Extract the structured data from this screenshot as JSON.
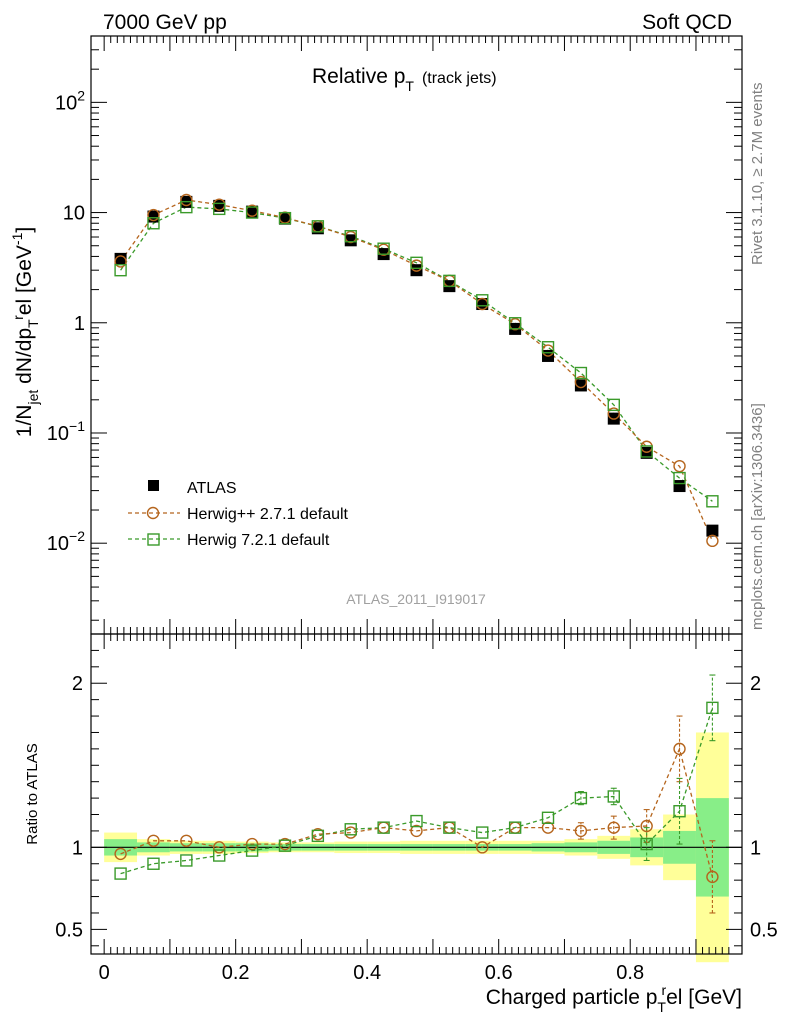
{
  "header": {
    "left": "7000 GeV pp",
    "right": "Soft QCD"
  },
  "side_labels": {
    "rivet": "Rivet 3.1.10, ≥ 2.7M events",
    "mcplots": "mcplots.cern.ch [arXiv:1306.3436]"
  },
  "analysis_tag": "ATLAS_2011_I919017",
  "colors": {
    "atlas": "#000000",
    "herwigpp": "#b5651d",
    "herwig7": "#3a9a2a",
    "band_inner": "#88ee88",
    "band_outer": "#ffff99"
  },
  "chart_data": [
    {
      "type": "scatter",
      "title": "Relative p_T (track jets)",
      "title_parts": {
        "main": "Relative p",
        "sub": "T",
        "extra": "(track jets)"
      },
      "ylabel": "1/N_jet dN/dp_T^rel [GeV^-1]",
      "ylabel_parts": {
        "a": "1/N",
        "a_sub": "jet",
        "b": " dN/dp",
        "b_sub": "T",
        "b_sup": "r",
        "c": "el [GeV",
        "c_sup": "-1",
        "d": "]"
      },
      "yscale": "log",
      "ylim": [
        0.0015,
        400
      ],
      "xlim": [
        -0.02,
        0.97
      ],
      "ytick_labels": [
        "10^-2",
        "10^-1",
        "1",
        "10",
        "10^2"
      ],
      "legend": {
        "position": "bottom-left",
        "entries": [
          "ATLAS",
          "Herwig++ 2.7.1 default",
          "Herwig 7.2.1 default"
        ]
      },
      "x": [
        0.025,
        0.075,
        0.125,
        0.175,
        0.225,
        0.275,
        0.325,
        0.375,
        0.425,
        0.475,
        0.525,
        0.575,
        0.625,
        0.675,
        0.725,
        0.775,
        0.825,
        0.875,
        0.925
      ],
      "series": [
        {
          "name": "ATLAS",
          "values": [
            3.8,
            9.2,
            12.5,
            11.5,
            10.2,
            8.8,
            7.2,
            5.6,
            4.2,
            3.0,
            2.15,
            1.48,
            0.88,
            0.5,
            0.27,
            0.135,
            0.066,
            0.033,
            0.013
          ]
        },
        {
          "name": "Herwig++ 2.7.1 default",
          "values": [
            3.6,
            9.5,
            13.0,
            11.8,
            10.4,
            9.0,
            7.5,
            6.0,
            4.6,
            3.3,
            2.4,
            1.48,
            0.97,
            0.56,
            0.29,
            0.15,
            0.075,
            0.05,
            0.0105
          ]
        },
        {
          "name": "Herwig 7.2.1 default",
          "values": [
            3.0,
            8.0,
            11.2,
            10.8,
            10.0,
            8.9,
            7.5,
            6.1,
            4.7,
            3.5,
            2.4,
            1.6,
            0.99,
            0.6,
            0.35,
            0.18,
            0.068,
            0.039,
            0.024
          ]
        }
      ]
    },
    {
      "type": "scatter",
      "ylabel": "Ratio to ATLAS",
      "xlabel": "Charged particle p_T^rel [GeV]",
      "xlabel_parts": {
        "a": "Charged particle p",
        "sub": "T",
        "sup": "r",
        "b": "el [GeV]"
      },
      "ylim": [
        0.35,
        2.3
      ],
      "yticks": [
        0.5,
        1,
        2
      ],
      "ytick_labels": [
        "0.5",
        "1",
        "2"
      ],
      "xticks": [
        0,
        0.2,
        0.4,
        0.6,
        0.8
      ],
      "xtick_labels": [
        "0",
        "0.2",
        "0.4",
        "0.6",
        "0.8"
      ],
      "x": [
        0.025,
        0.075,
        0.125,
        0.175,
        0.225,
        0.275,
        0.325,
        0.375,
        0.425,
        0.475,
        0.525,
        0.575,
        0.625,
        0.675,
        0.725,
        0.775,
        0.825,
        0.875,
        0.925
      ],
      "band_inner": [
        0.05,
        0.03,
        0.025,
        0.025,
        0.025,
        0.02,
        0.02,
        0.02,
        0.02,
        0.02,
        0.02,
        0.02,
        0.02,
        0.025,
        0.03,
        0.04,
        0.06,
        0.1,
        0.3
      ],
      "band_outer": [
        0.09,
        0.05,
        0.04,
        0.04,
        0.035,
        0.03,
        0.03,
        0.035,
        0.035,
        0.04,
        0.04,
        0.04,
        0.04,
        0.04,
        0.05,
        0.07,
        0.11,
        0.2,
        0.7
      ],
      "series": [
        {
          "name": "Herwig++ 2.7.1 default",
          "values": [
            0.96,
            1.04,
            1.04,
            1.0,
            1.02,
            1.02,
            1.08,
            1.09,
            1.12,
            1.1,
            1.12,
            1.0,
            1.12,
            1.12,
            1.1,
            1.12,
            1.13,
            1.6,
            0.82
          ],
          "errors": [
            0,
            0,
            0,
            0,
            0,
            0,
            0,
            0,
            0,
            0,
            0,
            0,
            0,
            0,
            0.05,
            0.07,
            0.1,
            0.2,
            0.22
          ]
        },
        {
          "name": "Herwig 7.2.1 default",
          "values": [
            0.84,
            0.9,
            0.92,
            0.95,
            0.98,
            1.01,
            1.07,
            1.11,
            1.12,
            1.16,
            1.12,
            1.09,
            1.12,
            1.18,
            1.3,
            1.31,
            1.02,
            1.22,
            1.85
          ],
          "errors": [
            0,
            0,
            0,
            0,
            0,
            0,
            0,
            0,
            0,
            0,
            0,
            0,
            0,
            0,
            0.04,
            0.05,
            0.1,
            0.2,
            0.2
          ]
        }
      ]
    }
  ]
}
